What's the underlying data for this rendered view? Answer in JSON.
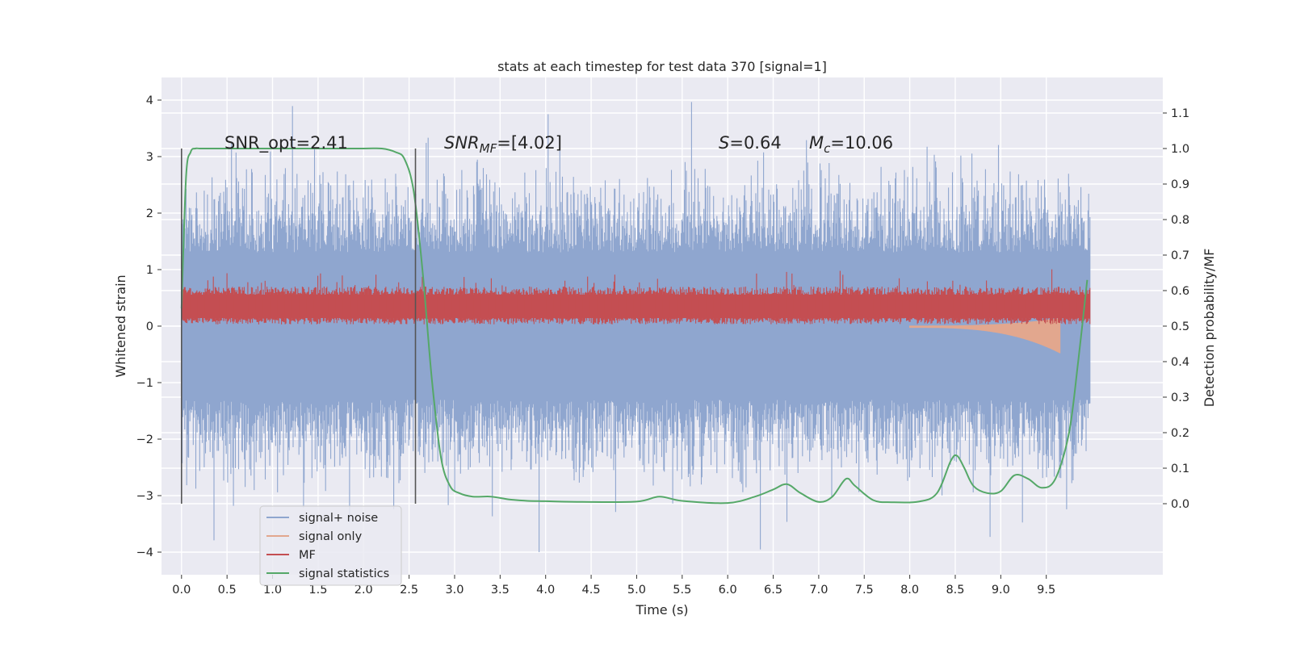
{
  "chart_data": {
    "type": "line",
    "title": "stats at each timestep for test data 370 [signal=1]",
    "xlabel": "Time (s)",
    "ylabel_left": "Whitened strain",
    "ylabel_right": "Detection probability/MF",
    "xlim": [
      -0.22,
      10.78
    ],
    "ylim_left": [
      -4.4,
      4.4
    ],
    "ylim_right": [
      -0.2,
      1.2
    ],
    "x_ticks": [
      "0.0",
      "0.5",
      "1.0",
      "1.5",
      "2.0",
      "2.5",
      "3.0",
      "3.5",
      "4.0",
      "4.5",
      "5.0",
      "5.5",
      "6.0",
      "6.5",
      "7.0",
      "7.5",
      "8.0",
      "8.5",
      "9.0",
      "9.5"
    ],
    "y_ticks_left": [
      "4",
      "3",
      "2",
      "1",
      "0",
      "−1",
      "−2",
      "−3",
      "−4"
    ],
    "y_ticks_right": [
      "1.1",
      "1.0",
      "0.9",
      "0.8",
      "0.7",
      "0.6",
      "0.5",
      "0.4",
      "0.3",
      "0.2",
      "0.1",
      "0.0"
    ],
    "grid": true,
    "legend_position": "lower-left",
    "annotations": {
      "snr_opt": "SNR_opt=2.41",
      "snr_mf_sym": "SNR",
      "snr_mf_sub": "MF",
      "snr_mf_val": "=[4.02]",
      "s_sym": "S",
      "s_val": "=0.64",
      "mc_sym": "M",
      "mc_sub": "c",
      "mc_val": "=10.06"
    },
    "vlines_x": [
      0.0,
      2.57
    ],
    "series": [
      {
        "name": "signal+ noise",
        "color": "#8fa6cf",
        "noise_band": [
          -1.3,
          1.3
        ],
        "extreme_range": [
          -4.0,
          4.05
        ],
        "x_range": [
          0.0,
          9.98
        ]
      },
      {
        "name": "signal only",
        "color": "#e2a78e",
        "x_range": [
          8.0,
          9.65
        ],
        "min_value": -0.45
      },
      {
        "name": "MF",
        "color": "#c44e52",
        "band": [
          0.1,
          0.65
        ],
        "peak_value": 0.97,
        "x_range": [
          0.0,
          9.98
        ]
      },
      {
        "name": "signal statistics",
        "color": "#55a868",
        "x": [
          0.0,
          0.05,
          0.1,
          0.15,
          0.2,
          0.3,
          0.5,
          1.0,
          1.5,
          2.0,
          2.2,
          2.35,
          2.45,
          2.55,
          2.65,
          2.75,
          2.85,
          2.95,
          3.05,
          3.2,
          3.4,
          3.6,
          3.8,
          4.0,
          4.4,
          5.0,
          5.25,
          5.5,
          6.0,
          6.3,
          6.5,
          6.65,
          6.8,
          7.0,
          7.15,
          7.3,
          7.4,
          7.6,
          7.8,
          8.1,
          8.3,
          8.45,
          8.52,
          8.6,
          8.7,
          8.85,
          9.0,
          9.15,
          9.3,
          9.45,
          9.6,
          9.75,
          9.85,
          9.95
        ],
        "y": [
          0.55,
          0.92,
          0.99,
          1.0,
          1.0,
          1.0,
          1.0,
          1.0,
          1.0,
          1.0,
          1.0,
          0.99,
          0.97,
          0.88,
          0.65,
          0.35,
          0.13,
          0.05,
          0.03,
          0.02,
          0.02,
          0.012,
          0.008,
          0.007,
          0.005,
          0.006,
          0.02,
          0.008,
          0.002,
          0.02,
          0.04,
          0.055,
          0.03,
          0.005,
          0.02,
          0.07,
          0.05,
          0.01,
          0.004,
          0.006,
          0.03,
          0.12,
          0.135,
          0.1,
          0.05,
          0.03,
          0.035,
          0.08,
          0.07,
          0.045,
          0.07,
          0.2,
          0.4,
          0.63
        ]
      }
    ]
  }
}
